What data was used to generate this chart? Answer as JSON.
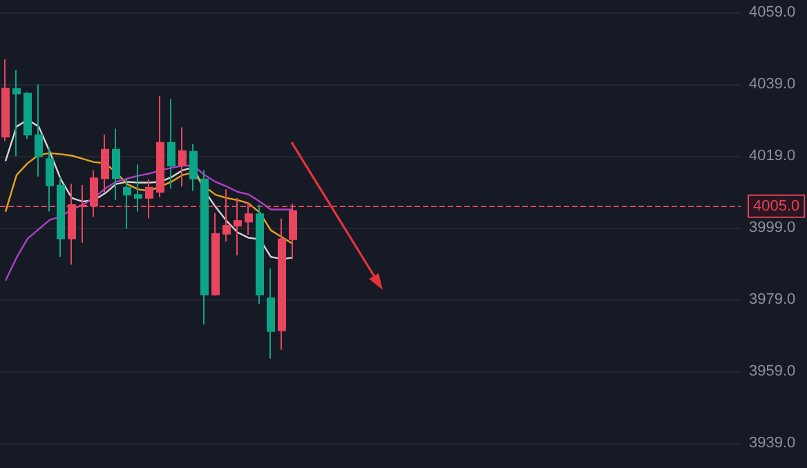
{
  "chart_data": {
    "type": "candlestick",
    "categories": [
      null,
      null,
      null,
      null,
      null,
      null,
      null,
      null,
      null,
      null,
      null,
      null,
      null,
      null,
      null,
      null,
      null,
      null,
      null,
      null,
      null,
      null,
      null,
      null,
      null,
      null,
      null,
      null,
      null,
      null,
      null,
      null,
      null,
      null,
      null,
      null,
      null,
      null,
      null,
      null,
      null,
      null,
      null,
      null,
      null,
      null,
      null,
      null,
      null,
      null,
      null,
      null,
      null,
      null,
      null,
      null,
      null,
      null,
      null,
      null,
      null,
      null,
      null,
      null,
      null,
      null,
      null
    ],
    "ohlc": [
      [
        4024.4,
        4045.9,
        4023.2,
        4037.8
      ],
      [
        4037.7,
        4043,
        4019,
        4036.4
      ],
      [
        4036.4,
        4036.8,
        4023.7,
        4024.9
      ],
      [
        4024.8,
        4038.9,
        4013.3,
        4018.9
      ],
      [
        4018.2,
        4021.4,
        4003.5,
        4010.8
      ],
      [
        4010.8,
        4013.1,
        3990.9,
        3996.0
      ],
      [
        3996.0,
        4011.2,
        3988.7,
        4005.4
      ],
      [
        4005.0,
        4010.9,
        3994.8,
        4005.2
      ],
      [
        4005.2,
        4015.0,
        4002.0,
        4012.8
      ],
      [
        4012.8,
        4025.0,
        4008.6,
        4020.8
      ],
      [
        4020.8,
        4026.6,
        4006.7,
        4012.8
      ],
      [
        4010.2,
        4012.7,
        3998.6,
        4008.2
      ],
      [
        4008.2,
        4016.6,
        4003.5,
        4007.3
      ],
      [
        4007.3,
        4012.5,
        4001.6,
        4010.2
      ],
      [
        4009.0,
        4035.8,
        4007.5,
        4022.7
      ],
      [
        4022.7,
        4034.9,
        4009.9,
        4016.3
      ],
      [
        4016.3,
        4027.0,
        4010.5,
        4020.4
      ],
      [
        4020.2,
        4022.3,
        4009.3,
        4012.7
      ],
      [
        4012.5,
        4015.0,
        3972.1,
        3980.4
      ],
      [
        3980.4,
        4003.1,
        3980.1,
        3997.3
      ],
      [
        3997.3,
        4009.7,
        3995.2,
        3999.6
      ],
      [
        3999.6,
        4007.3,
        3991.3,
        4000.9
      ],
      [
        4000.7,
        4006.0,
        3997.1,
        4002.8
      ],
      [
        4002.8,
        4005.4,
        3977.8,
        3980.4
      ],
      [
        3979.4,
        3987.7,
        3962.5,
        3970.2
      ],
      [
        3970.4,
        4001.6,
        3965.0,
        3995.8
      ],
      [
        3995.8,
        4005.8,
        3990.3,
        4003.7
      ],
      null,
      null,
      null,
      null,
      null,
      null,
      null,
      null,
      null,
      null,
      null,
      null,
      null,
      null,
      null,
      null,
      null,
      null,
      null,
      null,
      null,
      null,
      null,
      null,
      null,
      null,
      null,
      null,
      null,
      null,
      null,
      null,
      null,
      null,
      null,
      null,
      null,
      null,
      null,
      null
    ],
    "colors": [
      "#e8455f",
      "#0ca588",
      "#0ca588",
      "#0ca588",
      "#0ca588",
      "#0ca588",
      "#e8455f",
      "#e8455f",
      "#e8455f",
      "#e8455f",
      "#0ca588",
      "#0ca588",
      "#0ca588",
      "#e8455f",
      "#e8455f",
      "#0ca588",
      "#e8455f",
      "#0ca588",
      "#0ca588",
      "#e8455f",
      "#e8455f",
      "#e8455f",
      "#e8455f",
      "#0ca588",
      "#0ca588",
      "#e8455f",
      "#e8455f",
      null,
      null,
      null,
      null,
      null,
      null,
      null,
      null,
      null,
      null,
      null,
      null,
      null,
      null,
      null,
      null,
      null,
      null,
      null,
      null,
      null,
      null,
      null,
      null,
      null,
      null,
      null,
      null,
      null,
      null,
      null,
      null,
      null,
      null,
      null,
      null,
      null,
      null,
      null,
      null
    ],
    "series": [
      {
        "type": "line",
        "color": "#d6d6d6",
        "values": [
          4017.6,
          4027.2,
          4029.1,
          4027.2,
          4020.2,
          4012.5,
          4007.3,
          4006.3,
          4006.7,
          4008.6,
          4011.2,
          4011.8,
          4011.6,
          4011.6,
          4011.8,
          4013.1,
          4015,
          4015.9,
          4009.3,
          4004.8,
          4000.9,
          3997.7,
          3996.2,
          3995.8,
          3990.9,
          3990.3,
          3990.7,
          null,
          null,
          null,
          null,
          null,
          null,
          null,
          null,
          null,
          null,
          null,
          null,
          null,
          null,
          null,
          null,
          null,
          null,
          null,
          null,
          null,
          null,
          null,
          null,
          null,
          null,
          null,
          null,
          null,
          null,
          null,
          null,
          null,
          null,
          null,
          null,
          null,
          null,
          null,
          null
        ]
      },
      {
        "type": "line",
        "color": "#e8a517",
        "values": [
          4003.5,
          4013.7,
          4017,
          4019.3,
          4019.8,
          4019.5,
          4019.1,
          4018.2,
          4017.3,
          4017,
          4014.4,
          4011.2,
          4009.7,
          4009.3,
          4010.5,
          4011.8,
          4013.7,
          4014.4,
          4010.5,
          4008.2,
          4007.3,
          4006.7,
          4005.8,
          4003.2,
          3998.3,
          3996.4,
          3994.5,
          null,
          null,
          null,
          null,
          null,
          null,
          null,
          null,
          null,
          null,
          null,
          null,
          null,
          null,
          null,
          null,
          null,
          null,
          null,
          null,
          null,
          null,
          null,
          null,
          null,
          null,
          null,
          null,
          null,
          null,
          null,
          null,
          null,
          null,
          null,
          null,
          null,
          null,
          null,
          null
        ]
      },
      {
        "type": "line",
        "color": "#b040c8",
        "values": [
          3984.3,
          3990.7,
          3996,
          3998.6,
          4001.2,
          4002.2,
          4004.1,
          4005.4,
          4007.3,
          4009.9,
          4011.8,
          4012.7,
          4013.5,
          4014.1,
          4015,
          4015.7,
          4016.3,
          4016.3,
          4013.7,
          4011.8,
          4010.5,
          4009,
          4008.3,
          4006.3,
          4004.1,
          4004.1,
          4004.1,
          null,
          null,
          null,
          null,
          null,
          null,
          null,
          null,
          null,
          null,
          null,
          null,
          null,
          null,
          null,
          null,
          null,
          null,
          null,
          null,
          null,
          null,
          null,
          null,
          null,
          null,
          null,
          null,
          null,
          null,
          null,
          null,
          null,
          null,
          null,
          null,
          null,
          null,
          null,
          null
        ]
      }
    ],
    "ylim": [
      3939,
      4059
    ],
    "yticks": [
      {
        "value": 3939,
        "label": "3939.0"
      },
      {
        "value": 3959,
        "label": "3959.0"
      },
      {
        "value": 3979,
        "label": "3979.0"
      },
      {
        "value": 3999,
        "label": "3999.0"
      },
      {
        "value": 4019,
        "label": "4019.0"
      },
      {
        "value": 4039,
        "label": "4039.0"
      },
      {
        "value": 4059,
        "label": "4059.0"
      }
    ],
    "ref_lines": [
      {
        "axis": "y",
        "value": 4005.0,
        "label": "4005.0",
        "color": "#e0405a",
        "line_style": "dashed"
      }
    ],
    "grid": "y"
  }
}
